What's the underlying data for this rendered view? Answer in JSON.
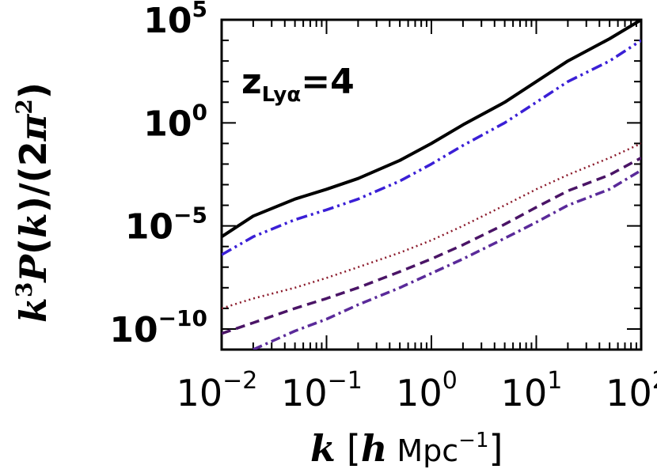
{
  "chart_data": {
    "type": "line",
    "xscale": "log",
    "yscale": "log",
    "xlim": [
      0.01,
      100
    ],
    "ylim": [
      1e-11,
      100000.0
    ],
    "grid": false,
    "x_tick_labels": [
      {
        "value": 0.01,
        "base": "10",
        "exp": "−2"
      },
      {
        "value": 0.1,
        "base": "10",
        "exp": "−1"
      },
      {
        "value": 1,
        "base": "10",
        "exp": "0"
      },
      {
        "value": 10,
        "base": "10",
        "exp": "1"
      },
      {
        "value": 100,
        "base": "10",
        "exp": "2"
      }
    ],
    "y_tick_labels": [
      {
        "value": 100000.0,
        "base": "10",
        "exp": "5"
      },
      {
        "value": 1,
        "base": "10",
        "exp": "0"
      },
      {
        "value": 1e-05,
        "base": "10",
        "exp": "−5"
      },
      {
        "value": 1e-10,
        "base": "10",
        "exp": "−10"
      }
    ],
    "xlabel": {
      "k": "k",
      "bracket_open": "[",
      "h": "h",
      "unit": " Mpc",
      "exp": "−1",
      "bracket_close": "]"
    },
    "ylabel": {
      "k": "k",
      "kexp": "3",
      "P": "P",
      "rest1": "(",
      "k2": "k",
      "rest2": ")/(2",
      "pi": "π",
      "piexp": "2",
      "rest3": ")"
    },
    "annotation": {
      "main": "z",
      "sub": "Lyα",
      "rest": "=4"
    },
    "series": [
      {
        "style": "solid",
        "color": "#000000",
        "x": [
          0.01,
          0.02,
          0.05,
          0.1,
          0.2,
          0.5,
          1,
          2,
          5,
          10,
          20,
          50,
          100
        ],
        "y": [
          3e-06,
          3e-05,
          0.0002,
          0.0006,
          0.002,
          0.015,
          0.1,
          0.8,
          10,
          100,
          1000,
          12000.0,
          100000.0
        ]
      },
      {
        "style": "dash-dot-dot",
        "color": "#3a1fd6",
        "x": [
          0.01,
          0.02,
          0.05,
          0.1,
          0.2,
          0.5,
          1,
          2,
          5,
          10,
          20,
          50,
          100
        ],
        "y": [
          4e-07,
          3e-06,
          2e-05,
          6e-05,
          0.0002,
          0.0015,
          0.01,
          0.08,
          1,
          10,
          100,
          1000,
          10000.0
        ]
      },
      {
        "style": "dotted",
        "color": "#8b1a2b",
        "x": [
          0.01,
          0.02,
          0.05,
          0.1,
          0.2,
          0.5,
          1,
          2,
          5,
          10,
          20,
          50,
          100
        ],
        "y": [
          1e-09,
          3e-09,
          1e-08,
          3e-08,
          1e-07,
          5e-07,
          2e-06,
          1e-05,
          0.0001,
          0.0006,
          0.003,
          0.02,
          0.1
        ]
      },
      {
        "style": "dashed",
        "color": "#4a1466",
        "x": [
          0.01,
          0.02,
          0.05,
          0.1,
          0.2,
          0.5,
          1,
          2,
          5,
          10,
          20,
          50,
          100
        ],
        "y": [
          6e-11,
          2e-10,
          1e-09,
          3e-09,
          1e-08,
          6e-08,
          2.5e-07,
          1.2e-06,
          1.2e-05,
          8e-05,
          0.0005,
          0.003,
          0.02
        ]
      },
      {
        "style": "dash-dot",
        "color": "#5a2a9a",
        "x": [
          0.02,
          0.05,
          0.1,
          0.2,
          0.5,
          1,
          2,
          5,
          10,
          20,
          50,
          100
        ],
        "y": [
          1e-11,
          8e-11,
          3e-10,
          1.5e-09,
          1e-08,
          5e-08,
          2.5e-07,
          2.5e-06,
          1.5e-05,
          0.0001,
          0.0006,
          0.005
        ]
      }
    ]
  }
}
